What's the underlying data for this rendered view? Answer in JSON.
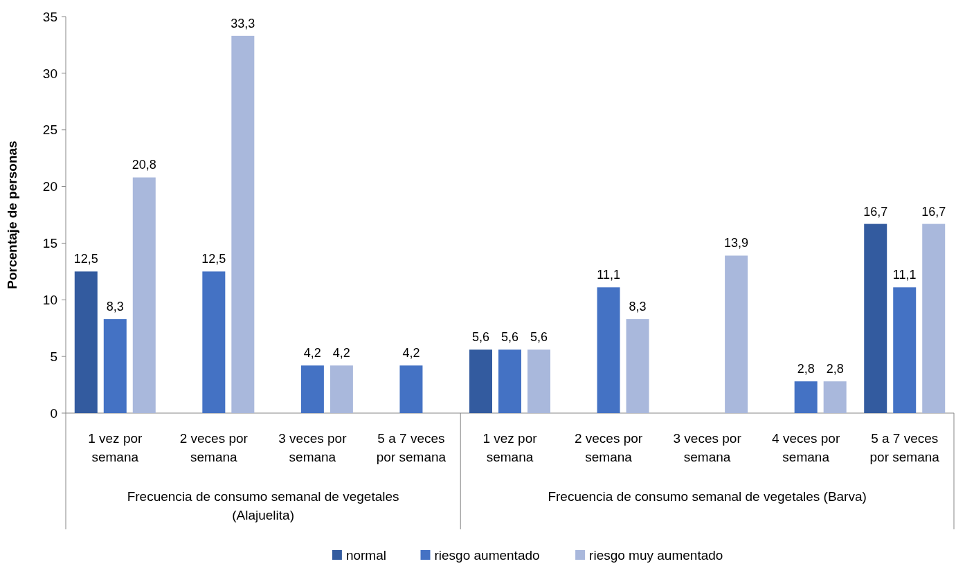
{
  "chart_data": {
    "type": "bar",
    "ylabel": "Porcentaje de personas",
    "categories": [
      "1 vez por semana",
      "2 veces por semana",
      "3 veces por semana",
      "5 a 7 veces por semana",
      "1 vez por semana",
      "2 veces por semana",
      "3 veces por semana",
      "4 veces por semana",
      "5 a 7 veces por semana"
    ],
    "series": [
      {
        "name": "normal",
        "color": "#335b9f",
        "values": [
          12.5,
          null,
          null,
          null,
          5.6,
          null,
          null,
          null,
          16.7
        ],
        "value_labels": [
          "12,5",
          null,
          null,
          null,
          "5,6",
          null,
          null,
          null,
          "16,7"
        ]
      },
      {
        "name": "riesgo aumentado",
        "color": "#4472c4",
        "values": [
          8.3,
          12.5,
          4.2,
          4.2,
          5.6,
          11.1,
          null,
          2.8,
          11.1
        ],
        "value_labels": [
          "8,3",
          "12,5",
          "4,2",
          "4,2",
          "5,6",
          "11,1",
          null,
          "2,8",
          "11,1"
        ]
      },
      {
        "name": "riesgo muy aumentado",
        "color": "#a9b8dc",
        "values": [
          20.8,
          33.3,
          4.2,
          null,
          5.6,
          8.3,
          13.9,
          2.8,
          16.7
        ],
        "value_labels": [
          "20,8",
          "33,3",
          "4,2",
          null,
          "5,6",
          "8,3",
          "13,9",
          "2,8",
          "16,7"
        ]
      }
    ],
    "annotations": [
      "Frecuencia de consumo semanal de vegetales (Alajuelita)",
      "Frecuencia de consumo semanal de vegetales (Barva)"
    ],
    "ylim": [
      0,
      35
    ],
    "yticks": [
      0,
      5,
      10,
      15,
      20,
      25,
      30,
      35
    ],
    "grid": false,
    "legend": "bottom"
  }
}
